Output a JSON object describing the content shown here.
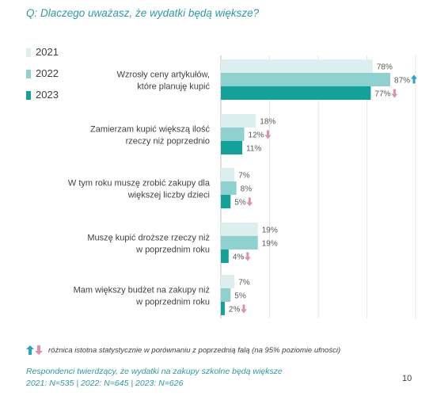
{
  "question": "Q: Dlaczego uważasz, że wydatki będą większe?",
  "chart_data": {
    "type": "bar",
    "orientation": "horizontal",
    "xlim": [
      0,
      100
    ],
    "grid": true,
    "legend_position": "top-left",
    "categories": [
      [
        "Wzrosły ceny artykułów,",
        "które planuję kupić"
      ],
      [
        "Zamierzam kupić większą ilość",
        "rzeczy niż poprzednio"
      ],
      [
        "W tym roku muszę zrobić zakupy dla",
        "większej liczby dzieci"
      ],
      [
        "Muszę kupić droższe rzeczy niż",
        "w poprzednim roku"
      ],
      [
        "Mam większy budżet na zakupy niż",
        "w poprzednim roku"
      ]
    ],
    "series": [
      {
        "name": "2021",
        "color": "#dcefef",
        "values": [
          78,
          18,
          7,
          19,
          7
        ],
        "labels": [
          "78%",
          "18%",
          "7%",
          "19%",
          "7%"
        ],
        "markers": [
          "",
          "",
          "",
          "",
          ""
        ]
      },
      {
        "name": "2022",
        "color": "#8ed1cf",
        "values": [
          87,
          12,
          8,
          19,
          5
        ],
        "labels": [
          "87%",
          "12%",
          "8%",
          "19%",
          "5%"
        ],
        "markers": [
          "up",
          "down",
          "",
          "",
          ""
        ]
      },
      {
        "name": "2023",
        "color": "#13a19a",
        "values": [
          77,
          11,
          5,
          4,
          2
        ],
        "labels": [
          "77%",
          "11%",
          "5%",
          "4%",
          "2%"
        ],
        "markers": [
          "down",
          "",
          "down",
          "down",
          "down"
        ]
      }
    ],
    "marker_colors": {
      "up": "#2aa6c4",
      "down": "#e08fb3"
    }
  },
  "note": "różnica istotna statystycznie w porównaniu z poprzednią falą (na 95% poziomie ufności)",
  "footer": {
    "line1": "Respondenci twierdzący, że wydatki na zakupy szkolne będą większe",
    "line2": "2021: N=535 | 2022: N=645 | 2023: N=626"
  },
  "page_number": "10"
}
